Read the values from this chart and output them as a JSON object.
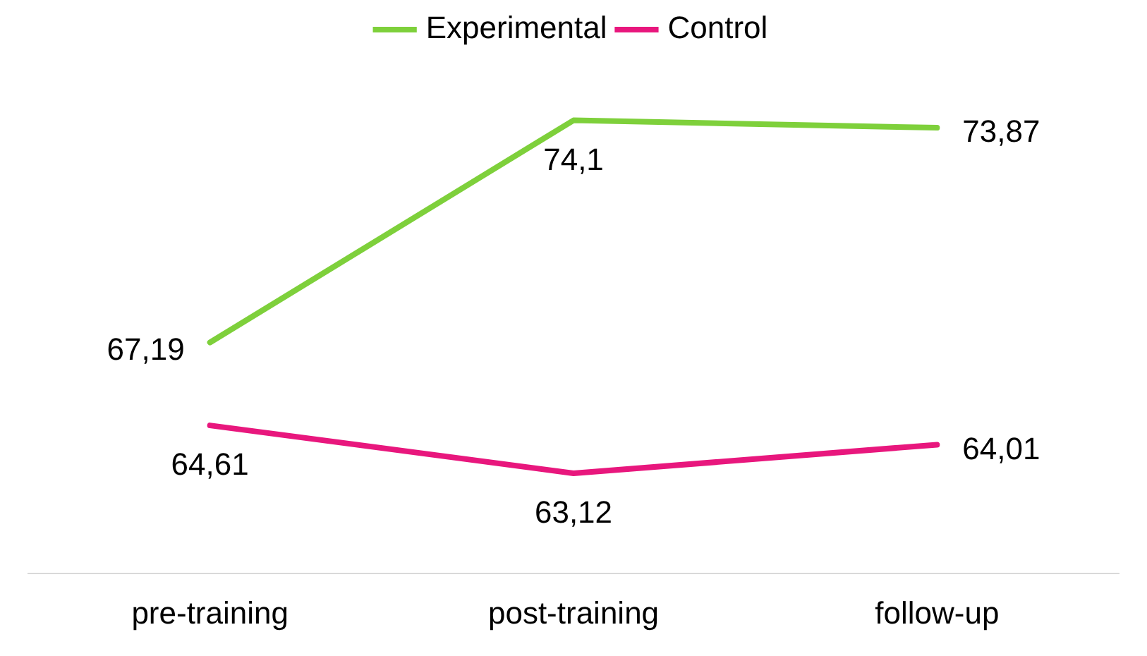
{
  "chart_data": {
    "type": "line",
    "categories": [
      "pre-training",
      "post-training",
      "follow-up"
    ],
    "series": [
      {
        "name": "Experimental",
        "color": "#7ed03b",
        "values": [
          67.19,
          74.1,
          73.87
        ],
        "value_labels": [
          "67,19",
          "74,1",
          "73,87"
        ]
      },
      {
        "name": "Control",
        "color": "#e8177d",
        "values": [
          64.61,
          63.12,
          64.01
        ],
        "value_labels": [
          "64,61",
          "63,12",
          "64,01"
        ]
      }
    ],
    "legend": "top",
    "grid": false,
    "marker": "none",
    "line_style": "solid"
  }
}
